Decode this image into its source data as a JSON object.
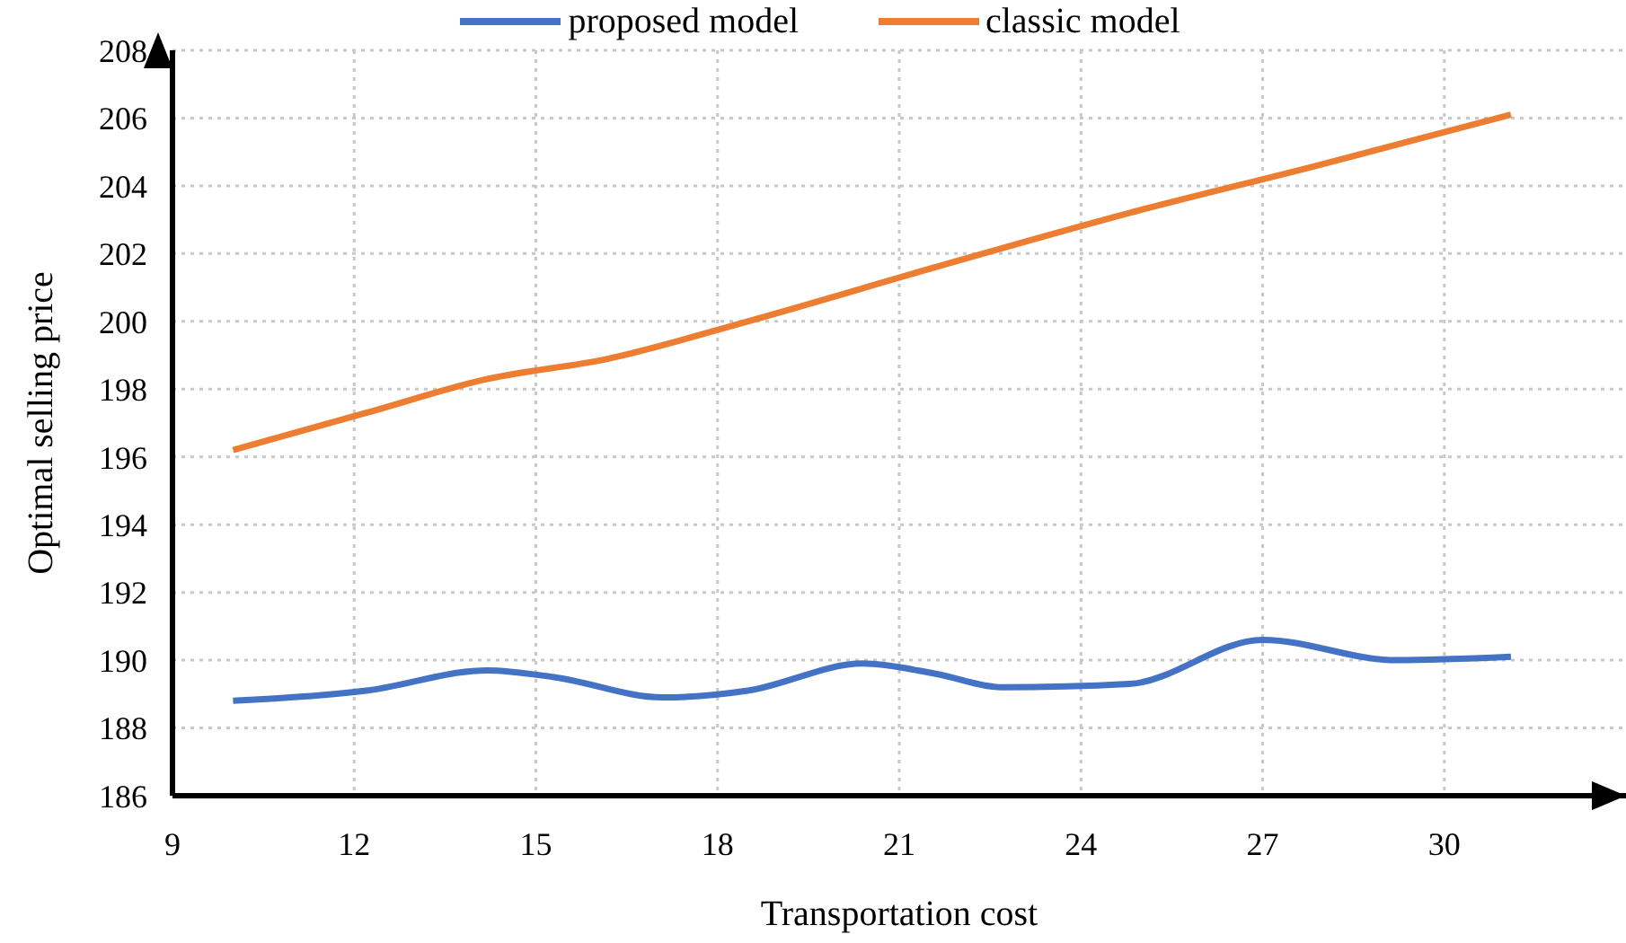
{
  "chart_data": {
    "type": "line",
    "xlabel": "Transportation cost",
    "ylabel": "Optimal selling price",
    "xlim": [
      9,
      33
    ],
    "xticks": [
      9,
      12,
      15,
      18,
      21,
      24,
      27,
      30
    ],
    "ylim": [
      186,
      208
    ],
    "yticks": [
      186,
      188,
      190,
      192,
      194,
      196,
      198,
      200,
      202,
      204,
      206,
      208
    ],
    "grid": true,
    "legend": "top",
    "marker": "none",
    "line_style": "solid",
    "series": [
      {
        "name": "proposed model",
        "color": "#4472c4",
        "x": [
          10.0,
          12.2,
          14.2,
          15.3,
          17.1,
          18.5,
          20.4,
          21.6,
          22.7,
          24.8,
          27.0,
          29.2,
          31.1
        ],
        "values": [
          188.8,
          189.1,
          189.7,
          189.5,
          188.9,
          189.1,
          189.9,
          189.6,
          189.2,
          189.3,
          190.6,
          190.0,
          190.1
        ]
      },
      {
        "name": "classic model",
        "color": "#ed7d31",
        "x": [
          10.0,
          12.2,
          14.2,
          16.2,
          18.5,
          21.6,
          24.8,
          27.9,
          31.1
        ],
        "values": [
          196.2,
          197.3,
          198.3,
          198.9,
          200.0,
          201.6,
          203.2,
          204.6,
          206.1
        ]
      }
    ]
  }
}
